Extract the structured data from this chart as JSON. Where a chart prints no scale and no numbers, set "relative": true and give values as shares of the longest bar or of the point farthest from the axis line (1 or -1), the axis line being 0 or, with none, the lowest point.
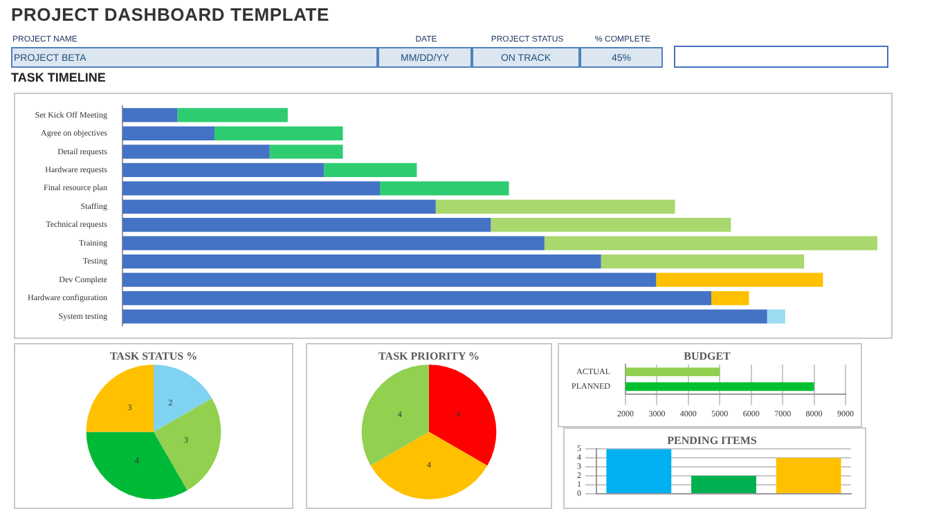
{
  "chart_data": [
    {
      "type": "other",
      "title": "PROJECT DASHBOARD TEMPLATE",
      "annotations": [
        "PROJECT NAME",
        "DATE",
        "PROJECT  STATUS",
        "% COMPLETE",
        "PROJECT BETA",
        "MM/DD/YY",
        "ON TRACK",
        "45%"
      ]
    },
    {
      "type": "bar",
      "title": "TASK TIMELINE",
      "orientation": "horizontal",
      "stacked": true,
      "relative": true,
      "categories": [
        "Set Kick Off Meeting",
        "Agree on objectives",
        "Detail requests",
        "Hardware requests",
        "Final resource plan",
        "Staffing",
        "Technical requests",
        "Training",
        "Testing",
        "Dev Complete",
        "Hardware configuration",
        "System testing"
      ],
      "series": [
        {
          "color": "#4472c4",
          "values": [
            0.073,
            0.122,
            0.195,
            0.267,
            0.341,
            0.415,
            0.488,
            0.559,
            0.634,
            0.707,
            0.78,
            0.854
          ]
        },
        {
          "colors": [
            "#2ecc71",
            "#2ecc71",
            "#2ecc71",
            "#2ecc71",
            "#2ecc71",
            "#a9d86e",
            "#a9d86e",
            "#a9d86e",
            "#a9d86e",
            "#ffc000",
            "#ffc000",
            "#9ddcf2"
          ],
          "values": [
            0.146,
            0.17,
            0.097,
            0.123,
            0.171,
            0.317,
            0.318,
            0.441,
            0.269,
            0.221,
            0.05,
            0.024
          ]
        }
      ]
    },
    {
      "type": "pie",
      "title": "TASK STATUS %",
      "categories": [
        null,
        null,
        null,
        null
      ],
      "values": [
        2,
        3,
        4,
        3
      ],
      "colors": [
        "#7fd3f0",
        "#92d050",
        "#00b936",
        "#ffc000"
      ],
      "data_labels": true
    },
    {
      "type": "pie",
      "title": "TASK PRIORITY %",
      "categories": [
        null,
        null,
        null
      ],
      "values": [
        4,
        4,
        4
      ],
      "colors": [
        "#ff0000",
        "#ffc000",
        "#92d050"
      ],
      "data_labels": true
    },
    {
      "type": "bar",
      "title": "BUDGET",
      "orientation": "horizontal",
      "categories": [
        "ACTUAL",
        "PLANNED"
      ],
      "values": [
        5000,
        8000
      ],
      "colors": [
        "#92d050",
        "#00c030"
      ],
      "xlim": [
        2000,
        9000
      ],
      "xticks": [
        2000,
        3000,
        4000,
        5000,
        6000,
        7000,
        8000,
        9000
      ],
      "grid": "x"
    },
    {
      "type": "bar",
      "title": "PENDING ITEMS",
      "categories": [
        null,
        null,
        null
      ],
      "values": [
        5,
        2,
        4
      ],
      "colors": [
        "#00b0f0",
        "#00b050",
        "#ffc000"
      ],
      "ylim": [
        0,
        5
      ],
      "yticks": [
        0,
        1,
        2,
        3,
        4,
        5
      ],
      "grid": "y"
    }
  ]
}
